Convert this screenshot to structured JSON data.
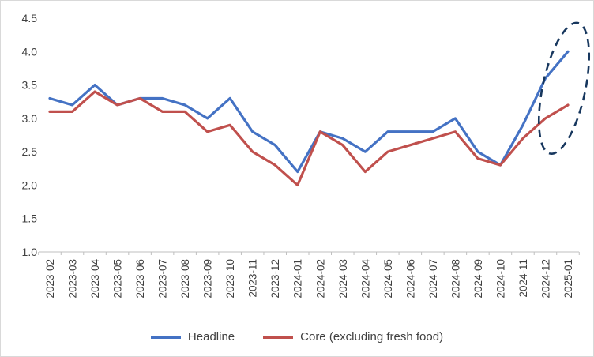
{
  "chart_data": {
    "type": "line",
    "categories": [
      "2023-02",
      "2023-03",
      "2023-04",
      "2023-05",
      "2023-06",
      "2023-07",
      "2023-08",
      "2023-09",
      "2023-10",
      "2023-11",
      "2023-12",
      "2024-01",
      "2024-02",
      "2024-03",
      "2024-04",
      "2024-05",
      "2024-06",
      "2024-07",
      "2024-08",
      "2024-09",
      "2024-10",
      "2024-11",
      "2024-12",
      "2025-01"
    ],
    "series": [
      {
        "name": "Headline",
        "color": "#4472C4",
        "values": [
          3.3,
          3.2,
          3.5,
          3.2,
          3.3,
          3.3,
          3.2,
          3.0,
          3.3,
          2.8,
          2.6,
          2.2,
          2.8,
          2.7,
          2.5,
          2.8,
          2.8,
          2.8,
          3.0,
          2.5,
          2.3,
          2.9,
          3.6,
          4.0
        ]
      },
      {
        "name": "Core (excluding fresh food)",
        "color": "#C0504D",
        "values": [
          3.1,
          3.1,
          3.4,
          3.2,
          3.3,
          3.1,
          3.1,
          2.8,
          2.9,
          2.5,
          2.3,
          2.0,
          2.8,
          2.6,
          2.2,
          2.5,
          2.6,
          2.7,
          2.8,
          2.4,
          2.3,
          2.7,
          3.0,
          3.2
        ]
      }
    ],
    "title": "",
    "xlabel": "",
    "ylabel": "",
    "ylim": [
      1.0,
      4.5
    ],
    "yticks": [
      1.0,
      1.5,
      2.0,
      2.5,
      3.0,
      3.5,
      4.0,
      4.5
    ],
    "grid": false,
    "legend_position": "bottom",
    "axis_color": "#BFBFBF",
    "text_color": "#404040",
    "annotation": {
      "shape": "dashed-ellipse",
      "color": "#17375E",
      "at_category": "2025-01",
      "value_from": 2.45,
      "value_to": 4.45
    }
  }
}
